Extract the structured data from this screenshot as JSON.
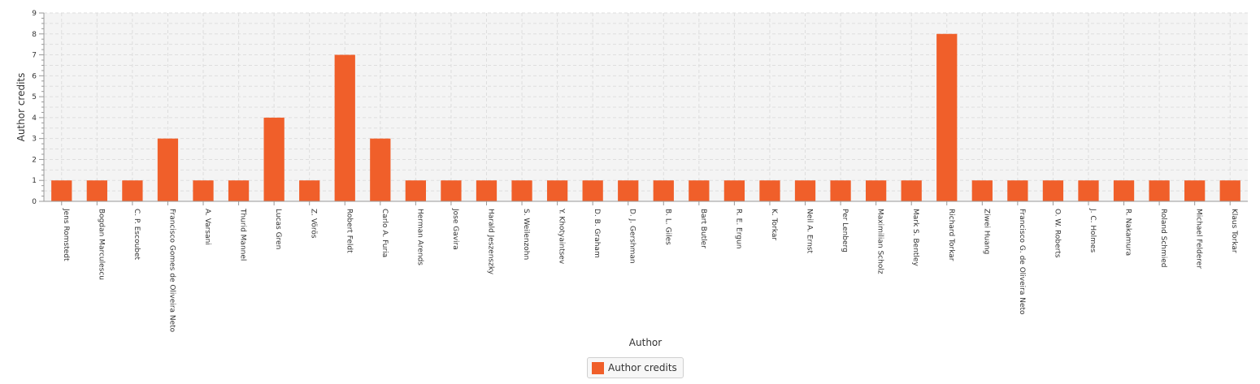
{
  "chart_data": {
    "type": "bar",
    "xlabel": "Author",
    "ylabel": "Author credits",
    "ylim": [
      0,
      9
    ],
    "yticks": [
      0,
      1,
      2,
      3,
      4,
      5,
      6,
      7,
      8,
      9
    ],
    "grid": true,
    "legend_position": "bottom-center",
    "categories": [
      "Jens Romstedt",
      "Bogdan Marculescu",
      "C. P. Escoubet",
      "Francisco Gomes de Oliveira Neto",
      "A. Varsani",
      "Thurid Mannel",
      "Lucas Gren",
      "Z. Vörös",
      "Robert Feldt",
      "Carlo A. Furia",
      "Herman Arends",
      "Jose Gavira",
      "Harald Jeszenszky",
      "S. Weilenzohn",
      "Y. Khotyaintsev",
      "D. B. Graham",
      "D. J. Gershman",
      "B. L. Giles",
      "Bart Butler",
      "R. E. Ergun",
      "K. Torkar",
      "Neil A. Ernst",
      "Per Lenberg",
      "Maximilian Scholz",
      "Mark S. Bentley",
      "Richard Torkar",
      "Ziwei Huang",
      "Francisco G. de Oliveira Neto",
      "O. W. Roberts",
      "J. C. Holmes",
      "R. Nakamura",
      "Roland Schmied",
      "Michael Felderer",
      "Klaus Torkar"
    ],
    "series": [
      {
        "name": "Author credits",
        "color": "#f05f2a",
        "values": [
          1,
          1,
          1,
          3,
          1,
          1,
          4,
          1,
          7,
          3,
          1,
          1,
          1,
          1,
          1,
          1,
          1,
          1,
          1,
          1,
          1,
          1,
          1,
          1,
          1,
          8,
          1,
          1,
          1,
          1,
          1,
          1,
          1,
          1
        ]
      }
    ]
  },
  "colors": {
    "bar": "#f05f2a",
    "plot_background": "#f4f4f4",
    "grid": "#dedede"
  }
}
